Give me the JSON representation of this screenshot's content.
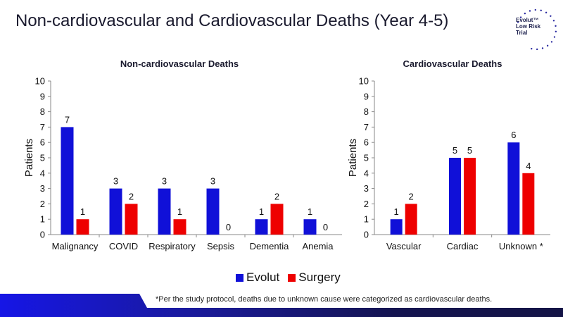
{
  "title": "Non-cardiovascular and Cardiovascular Deaths (Year 4-5)",
  "logo": {
    "lines": [
      "Evolut™",
      "Low Risk",
      "Trial"
    ]
  },
  "legend": [
    {
      "label": "Evolut",
      "color": "#1010d8"
    },
    {
      "label": "Surgery",
      "color": "#ee0000"
    }
  ],
  "footnote": "*Per the study protocol, deaths due to unknown cause were categorized as cardiovascular deaths.",
  "chart_data": [
    {
      "type": "bar",
      "title": "Non-cardiovascular Deaths",
      "xlabel": "",
      "ylabel": "Patients",
      "ylim": [
        0,
        10
      ],
      "yticks": [
        0,
        1,
        2,
        3,
        4,
        5,
        6,
        7,
        8,
        9,
        10
      ],
      "categories": [
        "Malignancy",
        "COVID",
        "Respiratory",
        "Sepsis",
        "Dementia",
        "Anemia"
      ],
      "series": [
        {
          "name": "Evolut",
          "values": [
            7,
            3,
            3,
            3,
            1,
            1
          ]
        },
        {
          "name": "Surgery",
          "values": [
            1,
            2,
            1,
            0,
            2,
            0
          ]
        }
      ],
      "grid": false,
      "legend": "bottom-center"
    },
    {
      "type": "bar",
      "title": "Cardiovascular Deaths",
      "xlabel": "",
      "ylabel": "Patients",
      "ylim": [
        0,
        10
      ],
      "yticks": [
        0,
        1,
        2,
        3,
        4,
        5,
        6,
        7,
        8,
        9,
        10
      ],
      "categories": [
        "Vascular",
        "Cardiac",
        "Unknown"
      ],
      "category_annotations": [
        "",
        "",
        "*"
      ],
      "series": [
        {
          "name": "Evolut",
          "values": [
            1,
            5,
            6
          ]
        },
        {
          "name": "Surgery",
          "values": [
            2,
            5,
            4
          ]
        }
      ],
      "grid": false,
      "legend": "bottom-center"
    }
  ]
}
